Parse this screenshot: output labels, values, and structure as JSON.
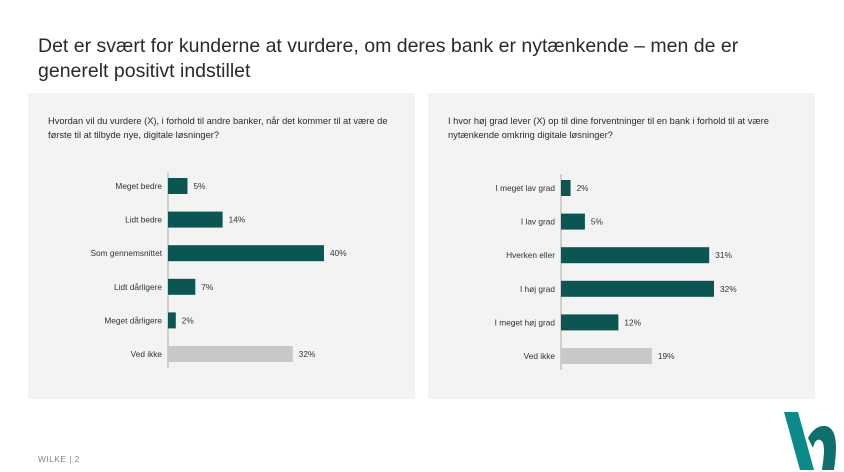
{
  "title": "Det er svært for kunderne at vurdere, om deres bank er nytænkende – men de er generelt positivt indstillet",
  "footer": "WILKE | 2",
  "colors": {
    "primary": "#0b5552",
    "neutral": "#c8c8c8",
    "panel": "#f3f3f3",
    "logo_teal": "#0b8a8a"
  },
  "chart_data": [
    {
      "type": "bar",
      "orientation": "horizontal",
      "title": "Hvordan vil du vurdere (X), i forhold til andre banker, når det kommer til at være de første til at tilbyde nye, digitale løsninger?",
      "categories": [
        "Meget bedre",
        "Lidt bedre",
        "Som gennemsnittet",
        "Lidt dårligere",
        "Meget dårligere",
        "Ved ikke"
      ],
      "values": [
        5,
        14,
        40,
        7,
        2,
        32
      ],
      "labels": [
        "5%",
        "14%",
        "40%",
        "7%",
        "2%",
        "32%"
      ],
      "neutral_categories": [
        "Ved ikke"
      ],
      "unit": "%",
      "xlim": [
        0,
        40
      ]
    },
    {
      "type": "bar",
      "orientation": "horizontal",
      "title": "I hvor høj grad lever (X) op til dine forventninger til en bank i forhold til at være nytænkende omkring digitale løsninger?",
      "categories": [
        "I meget lav grad",
        "I lav grad",
        "Hverken eller",
        "I høj grad",
        "I meget høj grad",
        "Ved ikke"
      ],
      "values": [
        2,
        5,
        31,
        32,
        12,
        19
      ],
      "labels": [
        "2%",
        "5%",
        "31%",
        "32%",
        "12%",
        "19%"
      ],
      "neutral_categories": [
        "Ved ikke"
      ],
      "unit": "%",
      "xlim": [
        0,
        32
      ]
    }
  ]
}
